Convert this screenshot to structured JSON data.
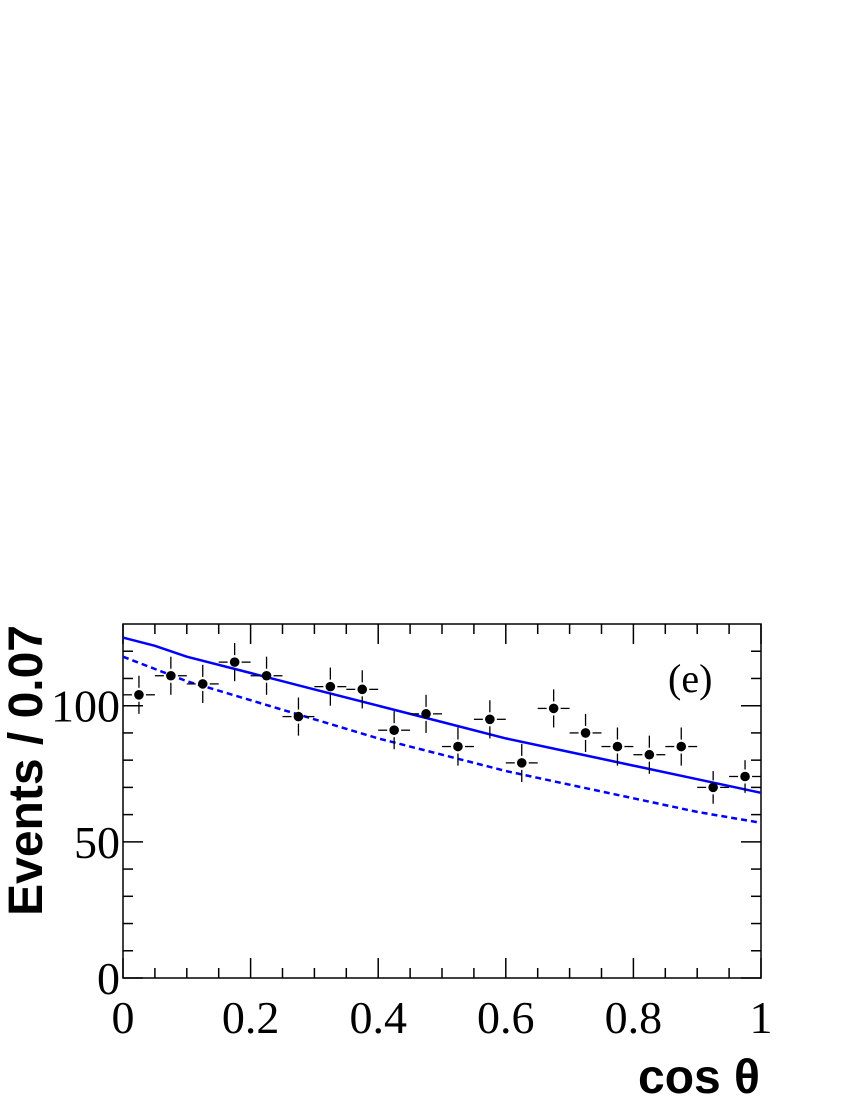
{
  "chart_data": {
    "type": "scatter",
    "panel_label": "(e)",
    "xlabel": "cos θ",
    "ylabel": "Events / 0.07",
    "xlim": [
      0,
      1
    ],
    "ylim": [
      0,
      130
    ],
    "xticks": [
      "0",
      "0.2",
      "0.4",
      "0.6",
      "0.8",
      "1"
    ],
    "yticks": [
      "0",
      "50",
      "100"
    ],
    "grid": false,
    "series": [
      {
        "kind": "points-with-errors",
        "color": "#000000",
        "x": [
          0.025,
          0.075,
          0.125,
          0.175,
          0.225,
          0.275,
          0.325,
          0.375,
          0.425,
          0.475,
          0.525,
          0.575,
          0.625,
          0.675,
          0.725,
          0.775,
          0.825,
          0.875,
          0.925,
          0.975
        ],
        "y": [
          104,
          111,
          108,
          116,
          111,
          96,
          107,
          106,
          91,
          97,
          85,
          95,
          79,
          99,
          90,
          85,
          82,
          85,
          70,
          74
        ],
        "yerr": [
          7,
          7,
          7,
          7,
          7,
          7,
          7,
          7,
          7,
          7,
          7,
          7,
          7,
          7,
          7,
          7,
          7,
          7,
          6,
          6
        ],
        "xerr": 0.025
      },
      {
        "kind": "line",
        "style": "solid",
        "color": "#0000ff",
        "x": [
          0,
          0.05,
          0.1,
          0.2,
          0.3,
          0.4,
          0.5,
          0.6,
          0.7,
          0.8,
          0.9,
          1.0
        ],
        "y": [
          125,
          122,
          118,
          112,
          106,
          100,
          94,
          88,
          83,
          78,
          73,
          68
        ]
      },
      {
        "kind": "line",
        "style": "dashed",
        "color": "#0000ff",
        "x": [
          0,
          0.1,
          0.2,
          0.3,
          0.4,
          0.5,
          0.6,
          0.7,
          0.8,
          0.9,
          1.0
        ],
        "y": [
          118,
          109,
          102,
          95,
          88,
          82,
          76,
          71,
          66,
          61,
          57
        ]
      }
    ]
  }
}
